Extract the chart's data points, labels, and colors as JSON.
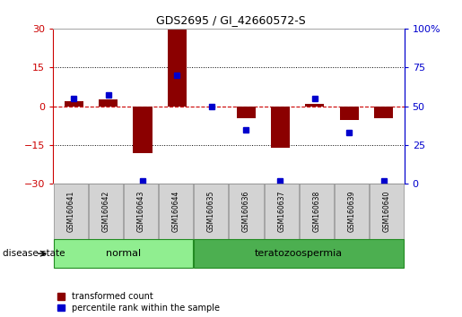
{
  "title": "GDS2695 / GI_42660572-S",
  "samples": [
    "GSM160641",
    "GSM160642",
    "GSM160643",
    "GSM160644",
    "GSM160635",
    "GSM160636",
    "GSM160637",
    "GSM160638",
    "GSM160639",
    "GSM160640"
  ],
  "transformed_count": [
    2.0,
    2.5,
    -18.0,
    29.5,
    0.0,
    -4.5,
    -16.0,
    1.0,
    -5.5,
    -4.5
  ],
  "percentile_rank": [
    55,
    57,
    2,
    70,
    50,
    35,
    2,
    55,
    33,
    2
  ],
  "left_ylim": [
    -30,
    30
  ],
  "right_ylim": [
    0,
    100
  ],
  "left_yticks": [
    -30,
    -15,
    0,
    15,
    30
  ],
  "right_yticks": [
    0,
    25,
    50,
    75,
    100
  ],
  "bar_color": "#8B0000",
  "dot_color": "#0000CD",
  "zero_line_color": "#cc0000",
  "grid_color": "#000000",
  "background_color": "#ffffff",
  "groups": [
    {
      "label": "normal",
      "start": 0,
      "end": 4,
      "color": "#90EE90"
    },
    {
      "label": "teratozoospermia",
      "start": 4,
      "end": 10,
      "color": "#4CAF50"
    }
  ],
  "legend_items": [
    {
      "label": "transformed count",
      "color": "#8B0000"
    },
    {
      "label": "percentile rank within the sample",
      "color": "#0000CD"
    }
  ],
  "disease_state_label": "disease state",
  "label_box_color": "#d3d3d3",
  "label_box_edge": "#888888",
  "group_box_edge": "#228B22",
  "bar_width": 0.55,
  "dot_size": 5
}
